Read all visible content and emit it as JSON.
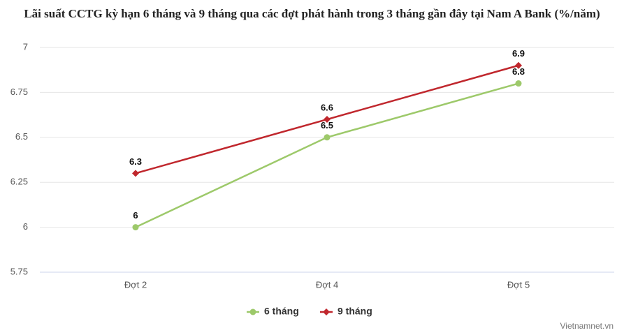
{
  "chart_data": {
    "type": "line",
    "title": "Lãi suất CCTG kỳ hạn 6 tháng và 9 tháng qua các đợt phát hành trong 3 tháng gần đây tại Nam A Bank (%/năm)",
    "categories": [
      "Đợt 2",
      "Đợt 4",
      "Đợt 5"
    ],
    "series": [
      {
        "name": "6 tháng",
        "color": "#9dc96a",
        "marker": "circle",
        "values": [
          6,
          6.5,
          6.8
        ]
      },
      {
        "name": "9 tháng",
        "color": "#c0272d",
        "marker": "diamond",
        "values": [
          6.3,
          6.6,
          6.9
        ]
      }
    ],
    "ylim": [
      5.75,
      7
    ],
    "yticks": [
      5.75,
      6,
      6.25,
      6.5,
      6.75,
      7
    ],
    "grid": true,
    "legend": "bottom",
    "source": "Vietnamnet.vn"
  }
}
